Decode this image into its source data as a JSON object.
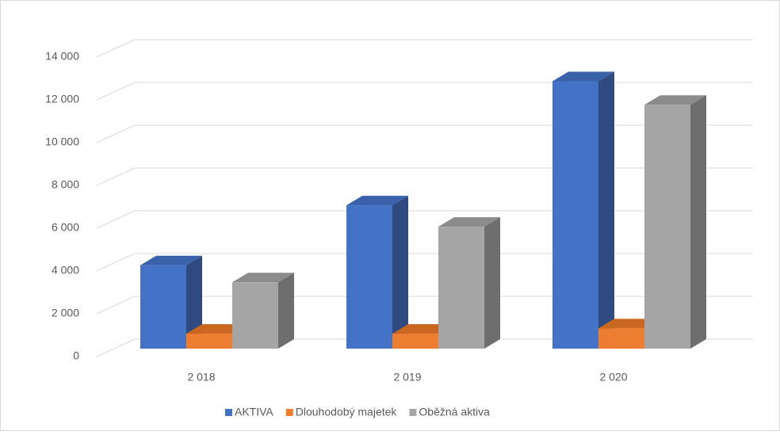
{
  "chart_data": {
    "type": "bar3d",
    "categories": [
      "2 018",
      "2 019",
      "2 020"
    ],
    "series": [
      {
        "name": "AKTIVA",
        "color": "#4472c4",
        "side": "#2e4a80",
        "top": "#3a62ab",
        "values": [
          3900,
          6700,
          12500
        ]
      },
      {
        "name": "Dlouhodobý majetek",
        "color": "#ed7d31",
        "side": "#a95520",
        "top": "#c9661f",
        "values": [
          700,
          700,
          950
        ]
      },
      {
        "name": "Oběžná aktiva",
        "color": "#a5a5a5",
        "side": "#6e6e6e",
        "top": "#8c8c8c",
        "values": [
          3100,
          5700,
          11400
        ]
      }
    ],
    "ylim": [
      0,
      14000
    ],
    "yticks": [
      0,
      {
        "value": 2000,
        "label": "2 000"
      },
      {
        "value": 4000,
        "label": "4 000"
      },
      {
        "value": 6000,
        "label": "6 000"
      },
      {
        "value": 8000,
        "label": "8 000"
      },
      {
        "value": 10000,
        "label": "10 000"
      },
      {
        "value": 12000,
        "label": "12 000"
      },
      {
        "value": 14000,
        "label": "14 000"
      }
    ],
    "grid": true,
    "legend": "bottom"
  }
}
